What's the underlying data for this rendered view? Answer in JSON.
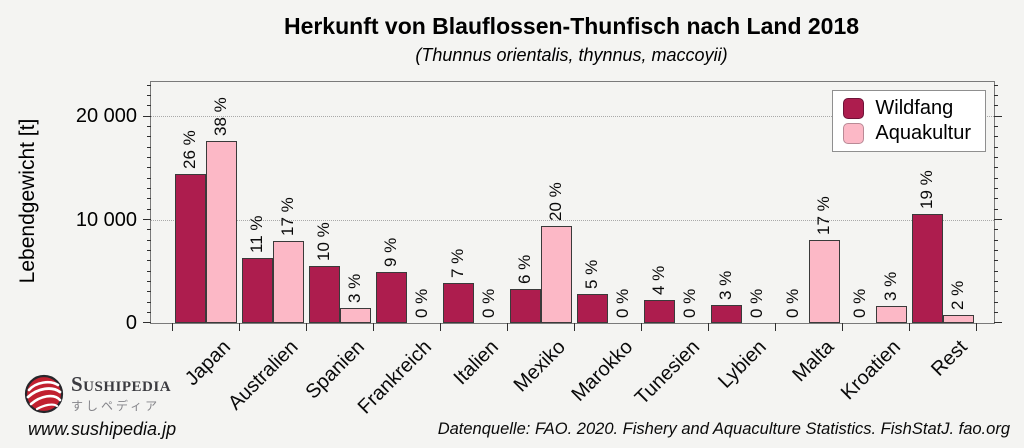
{
  "figure": {
    "background": "#f4f4f2"
  },
  "chart_data": {
    "type": "bar",
    "title": "Herkunft von Blauflossen-Thunfisch nach Land 2018",
    "subtitle": "(Thunnus orientalis, thynnus, maccoyii)",
    "ylabel": "Lebendgewicht [t]",
    "xlabel": "",
    "ylim": [
      0,
      23300
    ],
    "yticks": [
      {
        "value": 0,
        "label": "0"
      },
      {
        "value": 10000,
        "label": "10 000"
      },
      {
        "value": 20000,
        "label": "20 000"
      }
    ],
    "minor_tick_step_t": 1000,
    "grid": "dotted horizontal lines at 10 000 and 20 000",
    "legend_position": "top-right",
    "bar_border_color": "#3a3a3a",
    "categories": [
      "Japan",
      "Australien",
      "Spanien",
      "Frankreich",
      "Italien",
      "Mexiko",
      "Marokko",
      "Tunesien",
      "Lybien",
      "Malta",
      "Kroatien",
      "Rest"
    ],
    "series": [
      {
        "name": "Wildfang",
        "color": "#ad1d4e",
        "swatch_border": "#6e1338",
        "values_t": [
          14400,
          6300,
          5500,
          4900,
          3900,
          3300,
          2800,
          2200,
          1750,
          0,
          0,
          10500
        ],
        "percent_labels": [
          "26 %",
          "11 %",
          "10 %",
          "9 %",
          "7 %",
          "6 %",
          "5 %",
          "4 %",
          "3 %",
          "0 %",
          "0 %",
          "19 %"
        ]
      },
      {
        "name": "Aquakultur",
        "color": "#fcb8c6",
        "swatch_border": "#b98a96",
        "values_t": [
          17600,
          7950,
          1450,
          0,
          0,
          9400,
          0,
          0,
          0,
          8050,
          1600,
          800
        ],
        "percent_labels": [
          "38 %",
          "17 %",
          "3 %",
          "0 %",
          "0 %",
          "20 %",
          "0 %",
          "0 %",
          "0 %",
          "17 %",
          "3 %",
          "2 %"
        ]
      }
    ]
  },
  "footer": {
    "source": "Datenquelle: FAO. 2020. Fishery and Aquaculture Statistics. FishStatJ. fao.org",
    "website": "www.sushipedia.jp"
  },
  "logo": {
    "name": "Sushipedia",
    "kana": "すしペディア"
  }
}
